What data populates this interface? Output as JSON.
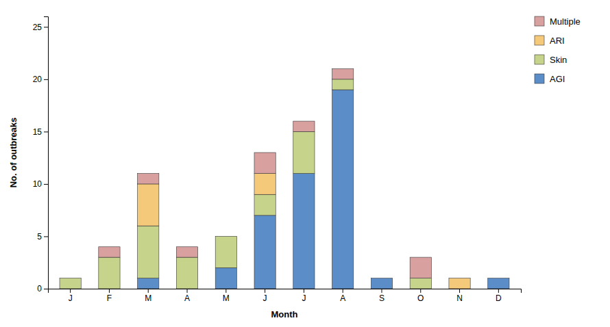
{
  "chart_data": {
    "type": "bar",
    "stacked": true,
    "categories": [
      "J",
      "F",
      "M",
      "A",
      "M",
      "J",
      "J",
      "A",
      "S",
      "O",
      "N",
      "D"
    ],
    "series": [
      {
        "name": "AGI",
        "color": "#5B8DC8",
        "values": [
          0,
          0,
          1,
          0,
          2,
          7,
          11,
          19,
          1,
          0,
          0,
          1
        ]
      },
      {
        "name": "Skin",
        "color": "#C5D48A",
        "values": [
          1,
          3,
          5,
          3,
          3,
          2,
          4,
          1,
          0,
          1,
          0,
          0
        ]
      },
      {
        "name": "ARI",
        "color": "#F5C97A",
        "values": [
          0,
          0,
          4,
          0,
          0,
          2,
          0,
          0,
          0,
          0,
          1,
          0
        ]
      },
      {
        "name": "Multiple",
        "color": "#D9A0A0",
        "values": [
          0,
          1,
          1,
          1,
          0,
          2,
          1,
          1,
          0,
          2,
          0,
          0
        ]
      }
    ],
    "xlabel": "Month",
    "ylabel": "No. of outbreaks",
    "ylim": [
      0,
      26
    ],
    "yticks": [
      0,
      5,
      10,
      15,
      20,
      25
    ],
    "grid": false,
    "legend": "upper right"
  }
}
